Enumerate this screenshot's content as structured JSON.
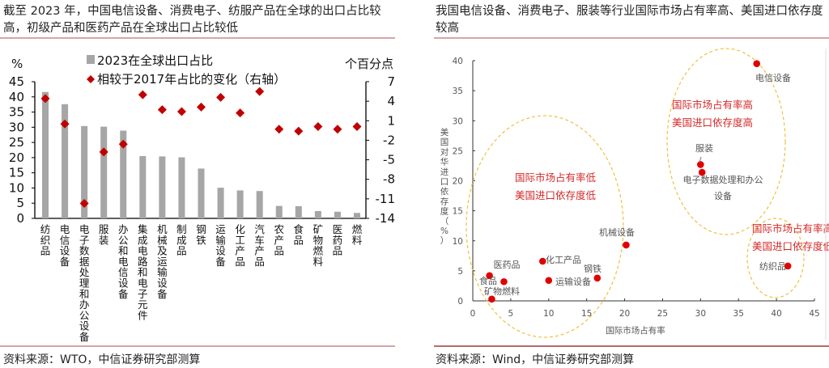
{
  "left": {
    "title": "截至 2023 年，中国电信设备、消费电子、纺服产品在全球的出口占比较高，初级产品和医药产品在全球出口占比较低",
    "source": "资料来源：WTO，中信证券研究部测算"
  },
  "right": {
    "title": "我国电信设备、消费电子、服装等行业国际市场占有率高、美国进口依存度较高",
    "source": "资料来源：Wind，中信证券研究部测算"
  },
  "chart_data": [
    {
      "type": "bar",
      "categories": [
        "纺织品",
        "电信设备",
        "电子数据处理和办公设备",
        "服装",
        "办公和电信设备",
        "集成电路和电子元件",
        "机械及运输设备",
        "制成品",
        "钢铁",
        "运输设备",
        "化工产品",
        "汽车产品",
        "农产品",
        "食品",
        "矿物燃料",
        "医药品",
        "燃料"
      ],
      "series": [
        {
          "name": "2023在全球出口占比",
          "axis": "left",
          "type": "bar",
          "color": "#a6a6a6",
          "values": [
            41.6,
            37.6,
            30.4,
            30.2,
            28.9,
            20.5,
            20.4,
            20.1,
            16.4,
            10.1,
            9.2,
            9.0,
            4.1,
            4.0,
            2.4,
            2.2,
            1.8
          ]
        },
        {
          "name": "相较于2017年占比的变化（右轴）",
          "axis": "right",
          "type": "scatter",
          "marker": "diamond",
          "color": "#c00000",
          "values": [
            4.4,
            0.5,
            -11.7,
            -3.8,
            -2.6,
            5.0,
            2.7,
            2.4,
            3.1,
            4.6,
            2.2,
            5.5,
            -0.3,
            -0.6,
            0.1,
            -0.3,
            0.1
          ]
        }
      ],
      "ylabel_left": "%",
      "ylabel_right": "个百分点",
      "ylim_left": [
        0,
        45
      ],
      "yticks_left": [
        0,
        5,
        10,
        15,
        20,
        25,
        30,
        35,
        40,
        45
      ],
      "ylim_right": [
        -14,
        7
      ],
      "yticks_right": [
        -14,
        -11,
        -8,
        -5,
        -2,
        1,
        4,
        7
      ],
      "grid": false,
      "legend": "top"
    },
    {
      "type": "scatter",
      "xlabel": "国际市场占有率",
      "ylabel": "美国对华进口依存度（%）",
      "xlim": [
        0,
        45
      ],
      "xticks": [
        0,
        5,
        10,
        15,
        20,
        25,
        30,
        35,
        40,
        45
      ],
      "ylim": [
        0,
        40
      ],
      "yticks": [
        0,
        5,
        10,
        15,
        20,
        25,
        30,
        35,
        40
      ],
      "grid": false,
      "color": "#e00000",
      "points": [
        {
          "label": "电信设备",
          "x": 37.4,
          "y": 39.5
        },
        {
          "label": "服装",
          "x": 30.0,
          "y": 22.7
        },
        {
          "label": "电子数据处理和办公设备",
          "x": 30.2,
          "y": 21.4
        },
        {
          "label": "纺织品",
          "x": 41.5,
          "y": 5.8
        },
        {
          "label": "机械设备",
          "x": 20.2,
          "y": 9.3
        },
        {
          "label": "化工产品",
          "x": 9.2,
          "y": 6.6
        },
        {
          "label": "运输设备",
          "x": 10.0,
          "y": 3.4
        },
        {
          "label": "钢铁",
          "x": 16.4,
          "y": 3.8
        },
        {
          "label": "医药品",
          "x": 4.1,
          "y": 3.2
        },
        {
          "label": "食品",
          "x": 2.2,
          "y": 4.2
        },
        {
          "label": "矿物燃料",
          "x": 2.5,
          "y": 0.3
        }
      ],
      "annotations": [
        {
          "lines": [
            "国际市场占有率低",
            "美国进口依存度低"
          ],
          "color": "#d42a2a"
        },
        {
          "lines": [
            "国际市场占有率高",
            "美国进口依存度高"
          ],
          "color": "#d42a2a"
        },
        {
          "lines": [
            "国际市场占有率高",
            "美国进口依存度低"
          ],
          "color": "#d42a2a"
        }
      ],
      "ellipse_color": "#f0c040"
    }
  ]
}
